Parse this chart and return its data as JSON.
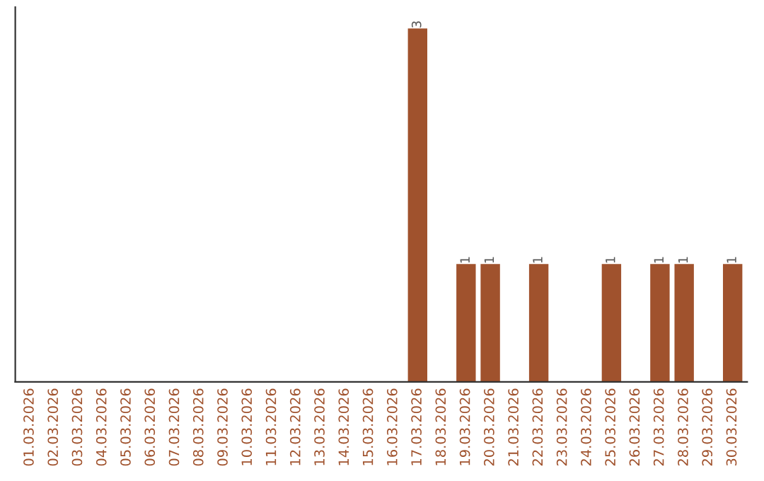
{
  "chart_data": {
    "type": "bar",
    "categories": [
      "01.03.2026",
      "02.03.2026",
      "03.03.2026",
      "04.03.2026",
      "05.03.2026",
      "06.03.2026",
      "07.03.2026",
      "08.03.2026",
      "09.03.2026",
      "10.03.2026",
      "11.03.2026",
      "12.03.2026",
      "13.03.2026",
      "14.03.2026",
      "15.03.2026",
      "16.03.2026",
      "17.03.2026",
      "18.03.2026",
      "19.03.2026",
      "20.03.2026",
      "21.03.2026",
      "22.03.2026",
      "23.03.2026",
      "24.03.2026",
      "25.03.2026",
      "26.03.2026",
      "27.03.2026",
      "28.03.2026",
      "29.03.2026",
      "30.03.2026"
    ],
    "values": [
      null,
      null,
      null,
      null,
      null,
      null,
      null,
      null,
      null,
      null,
      null,
      null,
      null,
      null,
      null,
      null,
      3,
      null,
      1,
      1,
      null,
      1,
      null,
      null,
      1,
      null,
      1,
      1,
      null,
      1
    ],
    "data_labels": true,
    "color": "#a0522d",
    "tick_labels": "x",
    "grid": false
  }
}
